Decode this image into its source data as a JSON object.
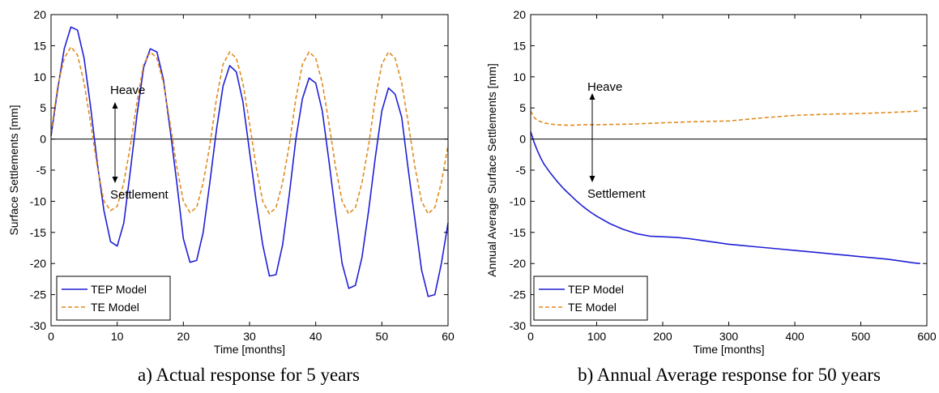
{
  "colors": {
    "tep": "#1f1fd6",
    "te": "#e08a1e",
    "axis": "#000000"
  },
  "chart_data": [
    {
      "type": "line",
      "caption": "a) Actual response for 5 years",
      "xlabel": "Time [months]",
      "ylabel": "Surface Settlements [mm]",
      "xlim": [
        0,
        60
      ],
      "ylim": [
        -30,
        20
      ],
      "xticks": [
        0,
        10,
        20,
        30,
        40,
        50,
        60
      ],
      "yticks": [
        -30,
        -25,
        -20,
        -15,
        -10,
        -5,
        0,
        5,
        10,
        15,
        20
      ],
      "grid": false,
      "legend_position": "bottom-left",
      "annotations": {
        "heave": "Heave",
        "settlement": "Settlement"
      },
      "series": [
        {
          "name": "TEP Model",
          "style": "solid",
          "color": "#1f1fd6",
          "x": [
            0,
            1,
            2,
            3,
            4,
            5,
            6,
            7,
            8,
            9,
            10,
            11,
            12,
            13,
            14,
            15,
            16,
            17,
            18,
            19,
            20,
            21,
            22,
            23,
            24,
            25,
            26,
            27,
            28,
            29,
            30,
            31,
            32,
            33,
            34,
            35,
            36,
            37,
            38,
            39,
            40,
            41,
            42,
            43,
            44,
            45,
            46,
            47,
            48,
            49,
            50,
            51,
            52,
            53,
            54,
            55,
            56,
            57,
            58,
            59,
            60
          ],
          "y": [
            0.5,
            8,
            14.5,
            18,
            17.5,
            13,
            5,
            -4,
            -11.5,
            -16.5,
            -17.2,
            -13.5,
            -5,
            4,
            11.5,
            14.5,
            14,
            9.5,
            1.5,
            -7,
            -16,
            -19.8,
            -19.5,
            -15,
            -7,
            1.5,
            8.5,
            11.8,
            10.8,
            6,
            -2,
            -10,
            -17,
            -22,
            -21.8,
            -17,
            -9,
            0,
            6.5,
            9.8,
            9,
            4.5,
            -3.5,
            -12,
            -20,
            -24,
            -23.5,
            -19,
            -11.5,
            -3,
            4.5,
            8.2,
            7.2,
            3.5,
            -5,
            -13,
            -21,
            -25.3,
            -25,
            -20,
            -13.5
          ]
        },
        {
          "name": "TE Model",
          "style": "dashed",
          "color": "#e08a1e",
          "x": [
            0,
            1,
            2,
            3,
            4,
            5,
            6,
            7,
            8,
            9,
            10,
            11,
            12,
            13,
            14,
            15,
            16,
            17,
            18,
            19,
            20,
            21,
            22,
            23,
            24,
            25,
            26,
            27,
            28,
            29,
            30,
            31,
            32,
            33,
            34,
            35,
            36,
            37,
            38,
            39,
            40,
            41,
            42,
            43,
            44,
            45,
            46,
            47,
            48,
            49,
            50,
            51,
            52,
            53,
            54,
            55,
            56,
            57,
            58,
            59,
            60
          ],
          "y": [
            1,
            8.5,
            13,
            14.8,
            13.5,
            9,
            2.5,
            -4.5,
            -10,
            -11.5,
            -10.8,
            -7,
            -1,
            6,
            12,
            14,
            13,
            9,
            2.5,
            -4.5,
            -10,
            -11.8,
            -11,
            -7,
            -1,
            6.5,
            12,
            14,
            13,
            9,
            2.5,
            -4.5,
            -10,
            -12,
            -11,
            -7,
            -1,
            6.5,
            12,
            14,
            13,
            9,
            2.5,
            -4.5,
            -10,
            -12,
            -11,
            -7,
            -1,
            6.5,
            12,
            14,
            13,
            9,
            2.5,
            -4.5,
            -10,
            -12,
            -11,
            -7,
            -1
          ]
        }
      ]
    },
    {
      "type": "line",
      "caption": "b) Annual Average response for 50 years",
      "xlabel": "Time [months]",
      "ylabel": "Annual Average Surface Settlements [mm]",
      "xlim": [
        0,
        600
      ],
      "ylim": [
        -30,
        20
      ],
      "xticks": [
        0,
        100,
        200,
        300,
        400,
        500,
        600
      ],
      "yticks": [
        -30,
        -25,
        -20,
        -15,
        -10,
        -5,
        0,
        5,
        10,
        15,
        20
      ],
      "grid": false,
      "legend_position": "bottom-left",
      "annotations": {
        "heave": "Heave",
        "settlement": "Settlement"
      },
      "series": [
        {
          "name": "TEP Model",
          "style": "solid",
          "color": "#1f1fd6",
          "x": [
            0,
            5,
            10,
            15,
            20,
            30,
            40,
            50,
            60,
            70,
            80,
            90,
            100,
            120,
            140,
            160,
            180,
            200,
            220,
            240,
            260,
            280,
            300,
            320,
            340,
            360,
            380,
            400,
            420,
            440,
            460,
            480,
            500,
            520,
            540,
            560,
            580,
            590
          ],
          "y": [
            1.2,
            -0.5,
            -1.8,
            -3,
            -4,
            -5.5,
            -6.8,
            -8,
            -9,
            -10,
            -10.9,
            -11.7,
            -12.4,
            -13.6,
            -14.5,
            -15.2,
            -15.6,
            -15.7,
            -15.8,
            -16.0,
            -16.3,
            -16.6,
            -16.9,
            -17.1,
            -17.3,
            -17.5,
            -17.7,
            -17.9,
            -18.1,
            -18.3,
            -18.5,
            -18.7,
            -18.9,
            -19.1,
            -19.3,
            -19.6,
            -19.9,
            -20.0
          ]
        },
        {
          "name": "TE Model",
          "style": "dashed",
          "color": "#e08a1e",
          "x": [
            0,
            5,
            10,
            20,
            30,
            40,
            60,
            80,
            100,
            150,
            200,
            250,
            300,
            350,
            400,
            450,
            500,
            550,
            590
          ],
          "y": [
            4.5,
            3.5,
            3.0,
            2.6,
            2.4,
            2.3,
            2.2,
            2.3,
            2.3,
            2.4,
            2.6,
            2.8,
            2.9,
            3.4,
            3.8,
            4.0,
            4.1,
            4.3,
            4.5
          ]
        }
      ]
    }
  ]
}
